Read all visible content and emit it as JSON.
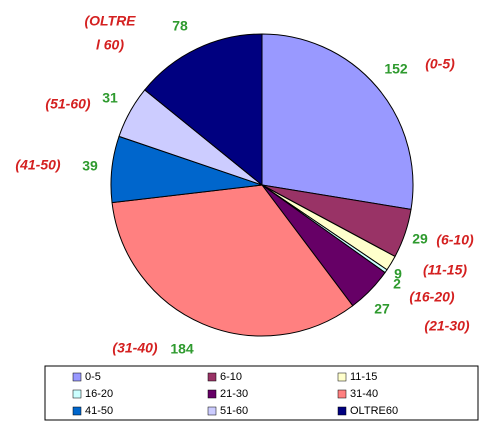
{
  "chart_data": {
    "type": "pie",
    "categories": [
      "0-5",
      "6-10",
      "11-15",
      "16-20",
      "21-30",
      "31-40",
      "41-50",
      "51-60",
      "OLTRE60"
    ],
    "values": [
      152,
      29,
      9,
      2,
      27,
      184,
      39,
      31,
      78
    ],
    "colors": [
      "#9999ff",
      "#993366",
      "#ffffcc",
      "#ccffff",
      "#660066",
      "#ff8080",
      "#0066cc",
      "#ccccff",
      "#000080"
    ],
    "outer_labels": [
      [
        "(0-5)"
      ],
      [
        "(6-10)"
      ],
      [
        "(11-15)"
      ],
      [
        "(16-20)"
      ],
      [
        "(21-30)"
      ],
      [
        "(31-40)"
      ],
      [
        "(41-50)"
      ],
      [
        "(51-60)"
      ],
      [
        "(OLTRE",
        "l 60)"
      ]
    ]
  }
}
